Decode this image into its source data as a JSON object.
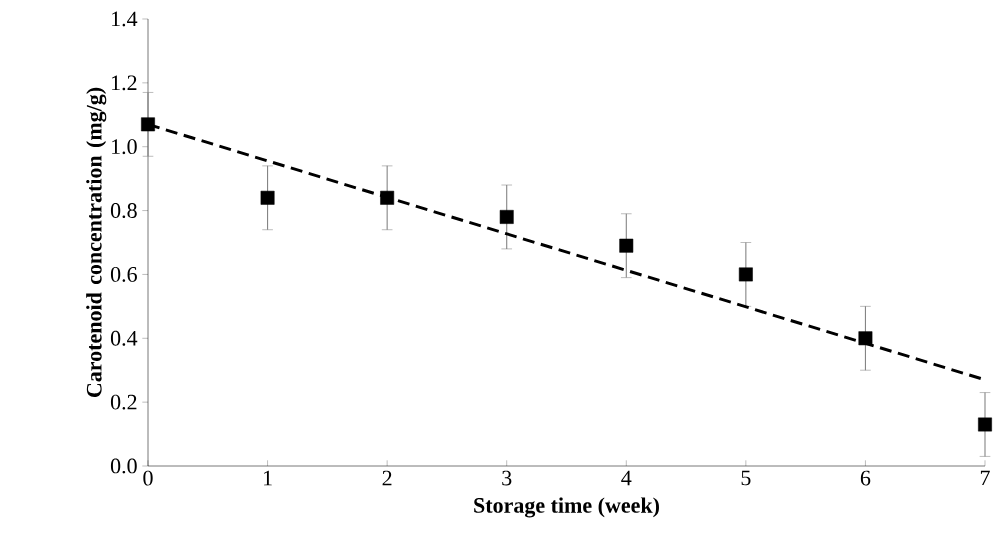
{
  "chart_data": {
    "type": "scatter",
    "xlabel": "Storage time (week)",
    "ylabel": "Carotenoid concentration (mg/g)",
    "x": [
      0,
      1,
      2,
      3,
      4,
      5,
      6,
      7
    ],
    "series": [
      {
        "color": "#000000",
        "marker": "square",
        "values": [
          1.07,
          0.84,
          0.84,
          0.78,
          0.69,
          0.6,
          0.4,
          0.13
        ],
        "errors": [
          0.1,
          0.1,
          0.1,
          0.1,
          0.1,
          0.1,
          0.1,
          0.1
        ]
      },
      {
        "type": "line",
        "color": "#000000",
        "line_style": "dashed",
        "x": [
          0,
          7
        ],
        "values": [
          1.07,
          0.27
        ]
      }
    ],
    "xlim": [
      0,
      7
    ],
    "ylim": [
      0,
      1.4
    ],
    "xticks": [
      0,
      1,
      2,
      3,
      4,
      5,
      6,
      7
    ],
    "yticks": [
      {
        "value": 0,
        "label": "0.0"
      },
      0.2,
      0.4,
      0.6,
      0.8,
      {
        "value": 1,
        "label": "1.0"
      },
      1.2,
      1.4
    ],
    "grid": false
  }
}
